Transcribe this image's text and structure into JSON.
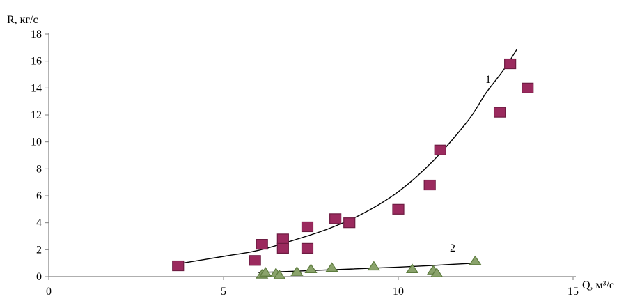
{
  "chart_data": {
    "type": "scatter",
    "xlabel": "Q, м³/с",
    "ylabel": "R, кг/с",
    "xlim": [
      0,
      15
    ],
    "ylim": [
      0,
      18
    ],
    "x_ticks": [
      "0",
      "5",
      "10",
      "15"
    ],
    "y_ticks": [
      "0",
      "2",
      "4",
      "6",
      "8",
      "10",
      "12",
      "14",
      "16",
      "18"
    ],
    "grid": false,
    "series": [
      {
        "name": "1",
        "marker": "square",
        "color": "#9b2a5e",
        "edge_color": "#6e1c42",
        "points": [
          [
            3.7,
            0.8
          ],
          [
            5.9,
            1.2
          ],
          [
            6.1,
            2.4
          ],
          [
            6.7,
            2.8
          ],
          [
            6.7,
            2.1
          ],
          [
            7.4,
            3.7
          ],
          [
            7.4,
            2.1
          ],
          [
            8.2,
            4.3
          ],
          [
            8.6,
            4.0
          ],
          [
            10.0,
            5.0
          ],
          [
            10.9,
            6.8
          ],
          [
            11.2,
            9.4
          ],
          [
            12.9,
            12.2
          ],
          [
            13.2,
            15.8
          ],
          [
            13.7,
            14.0
          ]
        ],
        "trend": {
          "color": "#000000",
          "points": [
            [
              3.7,
              0.95
            ],
            [
              5.0,
              1.5
            ],
            [
              6.0,
              1.95
            ],
            [
              7.0,
              2.7
            ],
            [
              8.0,
              3.55
            ],
            [
              9.0,
              4.7
            ],
            [
              10.0,
              6.3
            ],
            [
              11.0,
              8.6
            ],
            [
              12.0,
              11.6
            ],
            [
              12.5,
              13.6
            ],
            [
              13.0,
              15.3
            ],
            [
              13.4,
              16.9
            ]
          ]
        }
      },
      {
        "name": "2",
        "marker": "triangle",
        "color": "#8aa36b",
        "edge_color": "#5d7b3e",
        "points": [
          [
            6.1,
            0.2
          ],
          [
            6.2,
            0.35
          ],
          [
            6.5,
            0.3
          ],
          [
            6.6,
            0.15
          ],
          [
            7.1,
            0.4
          ],
          [
            7.5,
            0.6
          ],
          [
            8.1,
            0.7
          ],
          [
            9.3,
            0.8
          ],
          [
            10.4,
            0.6
          ],
          [
            11.0,
            0.5
          ],
          [
            11.1,
            0.3
          ],
          [
            12.2,
            1.2
          ]
        ],
        "trend": {
          "color": "#000000",
          "points": [
            [
              6.0,
              0.3
            ],
            [
              8.0,
              0.5
            ],
            [
              10.0,
              0.7
            ],
            [
              12.2,
              1.0
            ]
          ]
        }
      }
    ]
  }
}
